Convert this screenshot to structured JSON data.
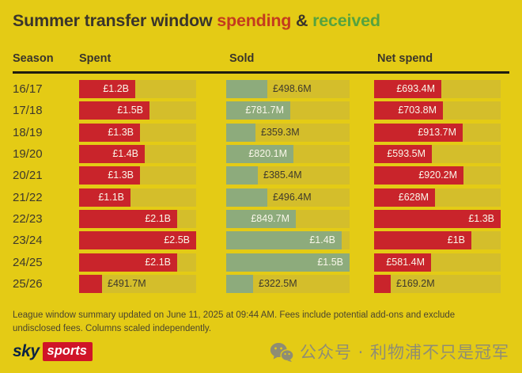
{
  "title": {
    "text_dark": "Summer transfer window",
    "spending": "spending",
    "ampersand": "&",
    "received": "received"
  },
  "table": {
    "headers": {
      "season": "Season",
      "spent": "Spent",
      "sold": "Sold",
      "net": "Net spend"
    }
  },
  "chart_data": {
    "type": "bar",
    "title": "Summer transfer window spending & received",
    "categories": [
      "16/17",
      "17/18",
      "18/19",
      "19/20",
      "20/21",
      "21/22",
      "22/23",
      "23/24",
      "24/25",
      "25/26"
    ],
    "series": [
      {
        "name": "Spent",
        "unit": "GBP millions",
        "values": [
          1200,
          1500,
          1300,
          1400,
          1300,
          1100,
          2100,
          2500,
          2100,
          491.7
        ],
        "labels": [
          "£1.2B",
          "£1.5B",
          "£1.3B",
          "£1.4B",
          "£1.3B",
          "£1.1B",
          "£2.1B",
          "£2.5B",
          "£2.1B",
          "£491.7M"
        ],
        "axis_max": 2500,
        "color": "#c9242b"
      },
      {
        "name": "Sold",
        "unit": "GBP millions",
        "values": [
          498.6,
          781.7,
          359.3,
          820.1,
          385.4,
          496.4,
          849.7,
          1400,
          1500,
          322.5
        ],
        "labels": [
          "£498.6M",
          "£781.7M",
          "£359.3M",
          "£820.1M",
          "£385.4M",
          "£496.4M",
          "£849.7M",
          "£1.4B",
          "£1.5B",
          "£322.5M"
        ],
        "axis_max": 1500,
        "color": "#8dab7c"
      },
      {
        "name": "Net spend",
        "unit": "GBP millions",
        "values": [
          693.4,
          703.8,
          913.7,
          593.5,
          920.2,
          628,
          1300,
          1000,
          581.4,
          169.2
        ],
        "labels": [
          "£693.4M",
          "£703.8M",
          "£913.7M",
          "£593.5M",
          "£920.2M",
          "£628M",
          "£1.3B",
          "£1B",
          "£581.4M",
          "£169.2M"
        ],
        "axis_max": 1300,
        "color": "#c9242b"
      }
    ],
    "layout": {
      "legend": false,
      "grid": false,
      "note": "Columns scaled independently"
    }
  },
  "footer": {
    "note": "League window summary updated on June 11, 2025 at 09:44 AM. Fees include potential add-ons and exclude undisclosed fees. Columns scaled independently.",
    "logo": {
      "sky": "sky",
      "sports": "sports"
    },
    "watermark": "公众号 · 利物浦不只是冠军"
  },
  "colors": {
    "background": "#e4cb15",
    "bar_track": "#d4be2b",
    "bar_red": "#c9242b",
    "bar_green": "#8dab7c",
    "title_red": "#c43b1e",
    "title_green": "#57a33e",
    "text_dark": "#3a352b",
    "bar_label_light": "#f9f6e9",
    "divider_black": "#1f1d10",
    "watermark_gray": "#8f8d74",
    "logo_navy": "#0b2343",
    "logo_red": "#d01428"
  }
}
